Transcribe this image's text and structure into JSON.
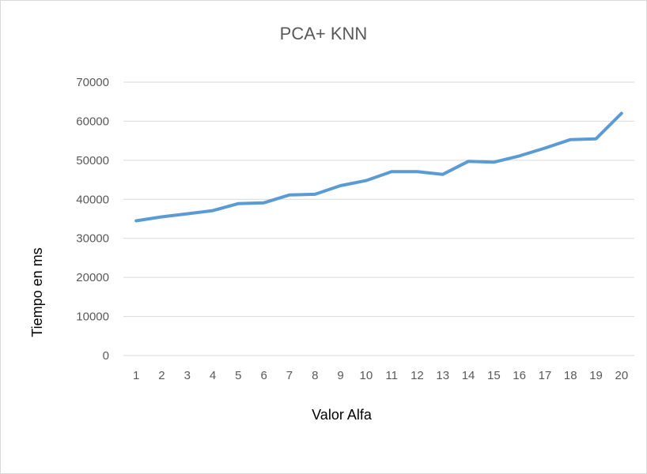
{
  "chart_data": {
    "type": "line",
    "title": "PCA+ KNN",
    "xlabel": "Valor Alfa",
    "ylabel": "Tiempo en ms",
    "categories": [
      "1",
      "2",
      "3",
      "4",
      "5",
      "6",
      "7",
      "8",
      "9",
      "10",
      "11",
      "12",
      "13",
      "14",
      "15",
      "16",
      "17",
      "18",
      "19",
      "20"
    ],
    "series": [
      {
        "values": [
          34500,
          35500,
          36300,
          37100,
          38900,
          39100,
          41100,
          41300,
          43500,
          44800,
          47100,
          47100,
          46400,
          49700,
          49500,
          51100,
          53100,
          55300,
          55500,
          62000
        ],
        "color": "#5b9bd5"
      }
    ],
    "ylim": [
      0,
      70000
    ],
    "yticks": [
      0,
      10000,
      20000,
      30000,
      40000,
      50000,
      60000,
      70000
    ],
    "grid": true,
    "gridColor": "#d9d9d9",
    "legend": "none"
  }
}
